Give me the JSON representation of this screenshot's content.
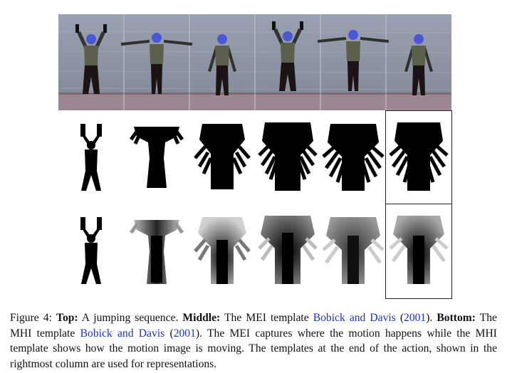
{
  "figure": {
    "photo_frames": 6,
    "colors": {
      "wall": "#8e95a5",
      "floor": "#9b8791",
      "citation_link": "#1f2fd1",
      "silhouette": "#000000"
    }
  },
  "caption": {
    "label": "Figure 4:",
    "top_bold": "Top:",
    "top_text": " A jumping sequence. ",
    "middle_bold": "Middle:",
    "middle_text": " The MEI template ",
    "cite1_authors": "Bobick and Davis",
    "cite1_open": " (",
    "cite1_year": "2001",
    "cite1_close": "). ",
    "bottom_bold": "Bottom:",
    "bottom_text": " The MHI template ",
    "cite2_authors": "Bobick and Davis",
    "cite2_open": " (",
    "cite2_year": "2001",
    "cite2_close": ").",
    "rest": " The MEI captures where the motion happens while the MHI template shows how the motion image is moving. The templates at the end of the action, shown in the rightmost column are used for representations."
  }
}
